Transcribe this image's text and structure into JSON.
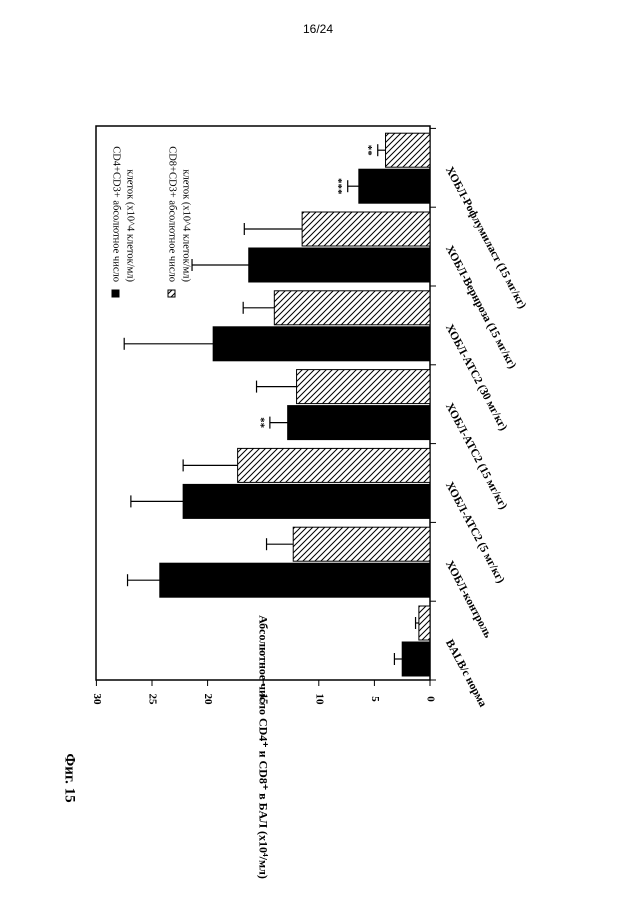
{
  "page_number": "16/24",
  "figure_label": "Фиг. 15",
  "chart_data": {
    "type": "bar",
    "orientation": "rotated 90° clockwise on the page",
    "categories": [
      "BALB/c норма",
      "ХОБЛ-контроль",
      "ХОБЛ-ATC2 (5 мг/кг)",
      "ХОБЛ-ATC2 (15 мг/кг)",
      "ХОБЛ-ATC2 (30 мг/кг)",
      "ХОБЛ-Вернроза (15 мг/кг)",
      "ХОБЛ-Рофлумиласт (15 мг/кг)"
    ],
    "series": [
      {
        "name": "CD4+CD3+ абсолютное число клеток (x10^4 клеток/мл)",
        "fill": "solid",
        "values": [
          2.5,
          24.3,
          22.2,
          12.8,
          19.5,
          16.3,
          6.4
        ],
        "errors": [
          0.7,
          2.9,
          4.7,
          1.6,
          8.0,
          5.1,
          1.0
        ],
        "significance": [
          "",
          "",
          "",
          "**",
          "",
          "",
          "***"
        ]
      },
      {
        "name": "CD8+CD3+ абсолютное число клеток (x10^4 клеток/мл)",
        "fill": "hatched",
        "values": [
          1.0,
          12.3,
          17.3,
          12.0,
          14.0,
          11.5,
          4.0
        ],
        "errors": [
          0.3,
          2.4,
          4.9,
          3.6,
          2.8,
          5.2,
          0.7
        ],
        "significance": [
          "",
          "",
          "",
          "",
          "",
          "",
          "**"
        ]
      }
    ],
    "ylabel": "Абсолютное число CD4⁺ и CD8⁺ в БАЛ (x10⁴/мл)",
    "ylim": [
      0,
      30
    ],
    "yticks": [
      "0",
      "5",
      "10",
      "15",
      "20",
      "25",
      "30"
    ],
    "grid": false,
    "legend_position": "top-left of plot",
    "colors": {
      "solid": "#000000",
      "hatched_bg": "#ffffff",
      "hatch_line": "#000000"
    }
  }
}
